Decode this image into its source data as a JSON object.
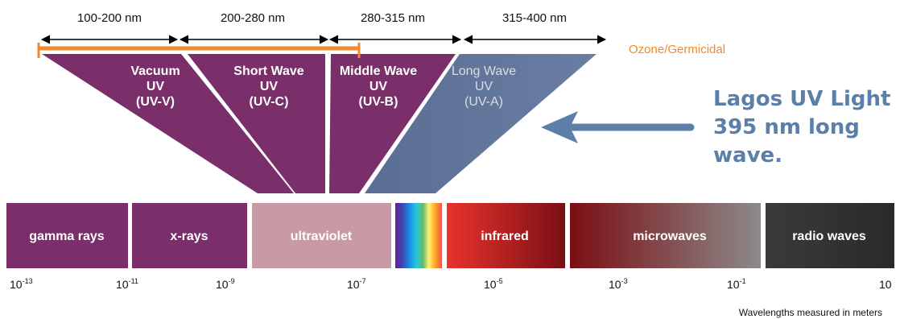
{
  "ranges": [
    "100-200 nm",
    "200-280 nm",
    "280-315 nm",
    "315-400 nm"
  ],
  "ozone_label": "Ozone/Germicidal",
  "uv_bands": [
    {
      "lines": [
        "Vacuum",
        "UV",
        "(UV-V)"
      ]
    },
    {
      "lines": [
        "Short Wave",
        "UV",
        "(UV-C)"
      ]
    },
    {
      "lines": [
        "Middle Wave",
        "UV",
        "(UV-B)"
      ]
    },
    {
      "lines": [
        "Long Wave",
        "UV",
        "(UV-A)"
      ]
    }
  ],
  "callout": [
    "Lagos UV Light",
    "395 nm long",
    "wave."
  ],
  "spectrum": [
    "gamma rays",
    "x-rays",
    "ultraviolet",
    "",
    "infrared",
    "microwaves",
    "radio waves"
  ],
  "ticks": [
    {
      "base": "10",
      "exp": "-13"
    },
    {
      "base": "10",
      "exp": "-11"
    },
    {
      "base": "10",
      "exp": "-9"
    },
    {
      "base": "10",
      "exp": "-7"
    },
    {
      "base": "10",
      "exp": "-5"
    },
    {
      "base": "10",
      "exp": "-3"
    },
    {
      "base": "10",
      "exp": "-1"
    },
    {
      "base": "10",
      "exp": ""
    }
  ],
  "footnote": "Wavelengths measured in meters",
  "colors": {
    "uv_purple": "#7a2e6a",
    "uv_a_blue": "#5b7095",
    "ozone_orange": "#f08a2e",
    "callout_blue": "#5b7fa8"
  }
}
